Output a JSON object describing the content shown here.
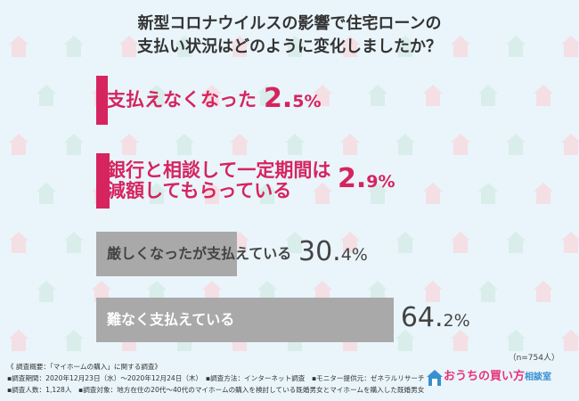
{
  "title_line1": "新型コロナウイルスの影響で住宅ローンの",
  "title_line2": "支払い状況はどのように変化しましたか？",
  "colors": {
    "highlight": "#d6245f",
    "neutral": "#a9a9a9",
    "bg": "#e9f5fb"
  },
  "chart_data": {
    "type": "bar",
    "categories": [
      "支払えなくなった",
      "銀行と相談して一定期間は減額してもらっている",
      "厳しくなったが支払えている",
      "難なく支払えている"
    ],
    "category_lines": [
      [
        "支払えなくなった"
      ],
      [
        "銀行と相談して一定期間は",
        "減額してもらっている"
      ],
      [
        "厳しくなったが支払えている"
      ],
      [
        "難なく支払えている"
      ]
    ],
    "values": [
      2.5,
      2.9,
      30.4,
      64.2
    ],
    "value_labels": [
      {
        "int": "2.",
        "dec": "5%"
      },
      {
        "int": "2.",
        "dec": "9%"
      },
      {
        "int": "30.",
        "dec": "4%"
      },
      {
        "int": "64.",
        "dec": "2%"
      }
    ],
    "title": "新型コロナウイルスの影響で住宅ローンの支払い状況はどのように変化しましたか？",
    "xlim": [
      0,
      100
    ]
  },
  "n_note": "（n=754人）",
  "footer": {
    "line1": "《 調査概要：「マイホームの購入」に関する調査》",
    "line2": "▪調査期間：2020年12月23日（水）～2020年12月24日（木）　▪調査方法：インターネット調査　▪モニター提供元：ゼネラルリサーチ",
    "line3": "▪調査人数：1,128人　▪調査対象：地方在住の20代～40代のマイホームの購入を検討している既婚男女とマイホームを購入した既婚男女"
  },
  "logo": {
    "main": "おうちの買い方",
    "sub": "相談室"
  }
}
